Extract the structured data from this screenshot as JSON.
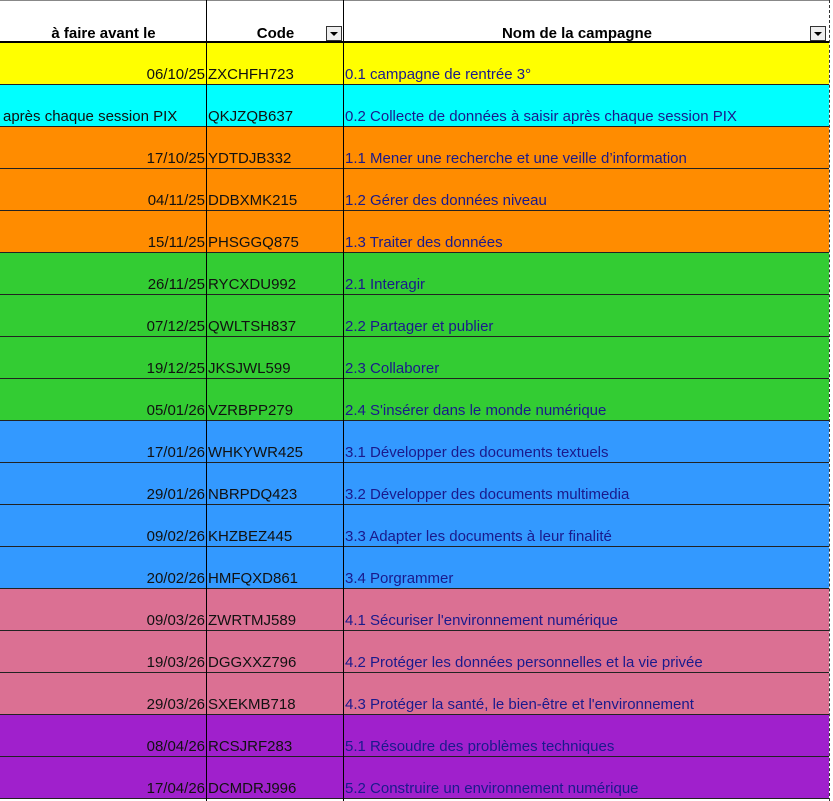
{
  "header": {
    "col1": "à faire avant le",
    "col2": "Code",
    "col3": "Nom de la campagne"
  },
  "rows": [
    {
      "date": "06/10/25",
      "code": "ZXCHFH723",
      "name": "0.1 campagne de rentrée 3°",
      "color": "#FFFF00"
    },
    {
      "date": "après chaque session PIX",
      "code": "QKJZQB637",
      "name": "0.2 Collecte de données à saisir après chaque session PIX",
      "color": "#00FFFF"
    },
    {
      "date": "17/10/25",
      "code": "YDTDJB332",
      "name": "1.1 Mener une recherche et une veille d’information",
      "color": "#FF8C00"
    },
    {
      "date": "04/11/25",
      "code": "DDBXMK215",
      "name": "1.2 Gérer des données niveau",
      "color": "#FF8C00"
    },
    {
      "date": "15/11/25",
      "code": "PHSGGQ875",
      "name": "1.3 Traiter des données",
      "color": "#FF8C00"
    },
    {
      "date": "26/11/25",
      "code": "RYCXDU992",
      "name": "2.1 Interagir",
      "color": "#33CC33"
    },
    {
      "date": "07/12/25",
      "code": "QWLTSH837",
      "name": "2.2 Partager et publier",
      "color": "#33CC33"
    },
    {
      "date": "19/12/25",
      "code": "JKSJWL599",
      "name": "2.3 Collaborer",
      "color": "#33CC33"
    },
    {
      "date": "05/01/26",
      "code": "VZRBPP279",
      "name": "2.4 S'insérer dans le monde numérique",
      "color": "#33CC33"
    },
    {
      "date": "17/01/26",
      "code": "WHKYWR425",
      "name": "3.1 Développer des documents textuels",
      "color": "#3399FF"
    },
    {
      "date": "29/01/26",
      "code": "NBRPDQ423",
      "name": "3.2 Développer des documents multimedia",
      "color": "#3399FF"
    },
    {
      "date": "09/02/26",
      "code": "KHZBEZ445",
      "name": "3.3 Adapter les documents à leur finalité",
      "color": "#3399FF"
    },
    {
      "date": "20/02/26",
      "code": "HMFQXD861",
      "name": "3.4 Porgrammer",
      "color": "#3399FF"
    },
    {
      "date": "09/03/26",
      "code": "ZWRTMJ589",
      "name": "4.1 Sécuriser l'environnement numérique",
      "color": "#DB7093"
    },
    {
      "date": "19/03/26",
      "code": "DGGXXZ796",
      "name": "4.2 Protéger les données personnelles et la vie privée",
      "color": "#DB7093"
    },
    {
      "date": "29/03/26",
      "code": "SXEKMB718",
      "name": "4.3 Protéger la santé, le bien-être et l'environnement",
      "color": "#DB7093"
    },
    {
      "date": "08/04/26",
      "code": "RCSJRF283",
      "name": "5.1 Résoudre des problèmes techniques",
      "color": "#A020CC"
    },
    {
      "date": "17/04/26",
      "code": "DCMDRJ996",
      "name": "5.2 Construire un environnement numérique",
      "color": "#A020CC"
    }
  ]
}
